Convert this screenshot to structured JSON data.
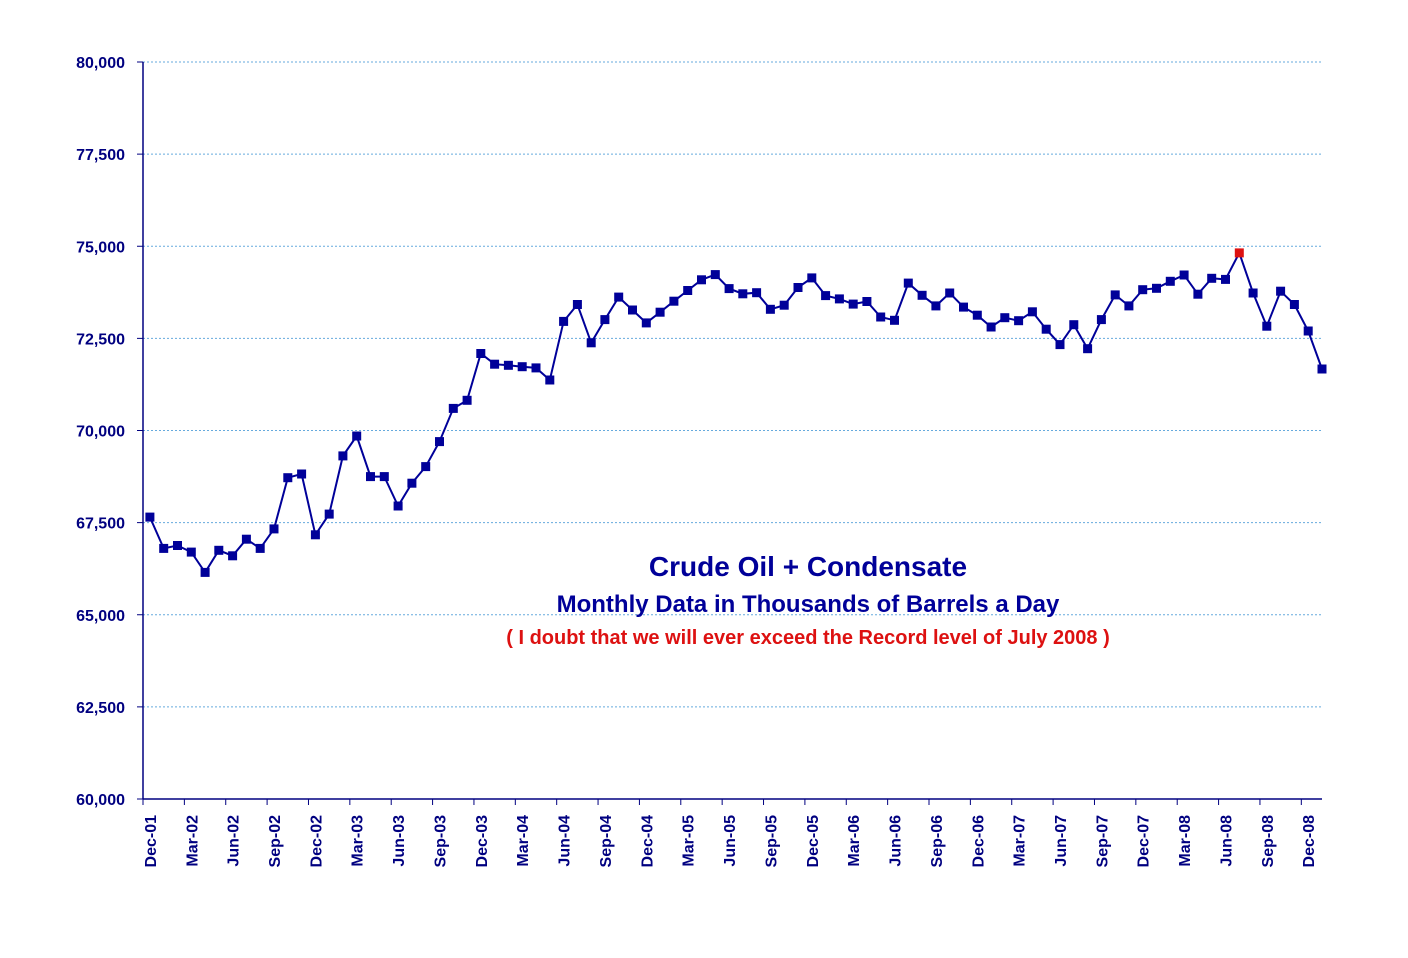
{
  "chart_data": {
    "type": "line",
    "title": "Crude Oil + Condensate",
    "subtitle": "Monthly Data in Thousands of Barrels a Day",
    "annotation": "( I doubt that we will ever exceed the Record level of July 2008 )",
    "xlabel": "",
    "ylabel": "",
    "ylim": [
      60000,
      80000
    ],
    "yticks": [
      "60,000",
      "62,500",
      "65,000",
      "67,500",
      "70,000",
      "72,500",
      "75,000",
      "77,500",
      "80,000"
    ],
    "xtick_labels": [
      "Dec-01",
      "Mar-02",
      "Jun-02",
      "Sep-02",
      "Dec-02",
      "Mar-03",
      "Jun-03",
      "Sep-03",
      "Dec-03",
      "Mar-04",
      "Jun-04",
      "Sep-04",
      "Dec-04",
      "Mar-05",
      "Jun-05",
      "Sep-05",
      "Dec-05",
      "Mar-06",
      "Jun-06",
      "Sep-06",
      "Dec-06",
      "Mar-07",
      "Jun-07",
      "Sep-07",
      "Dec-07",
      "Mar-08",
      "Jun-08",
      "Sep-08",
      "Dec-08"
    ],
    "grid": true,
    "legend": "none",
    "x_start": "Dec-01",
    "x_end": "Jan-09",
    "series": [
      {
        "color": "#000099",
        "values": [
          67650,
          66800,
          66880,
          66700,
          66150,
          66750,
          66600,
          67050,
          66800,
          67330,
          68720,
          68820,
          67170,
          67730,
          69310,
          69850,
          68750,
          68750,
          67950,
          68570,
          69020,
          69700,
          70600,
          70820,
          72090,
          71800,
          71770,
          71730,
          71700,
          71370,
          72960,
          73420,
          72380,
          73010,
          73620,
          73270,
          72920,
          73210,
          73510,
          73800,
          74090,
          74230,
          73850,
          73710,
          73740,
          73290,
          73400,
          73880,
          74140,
          73660,
          73570,
          73430,
          73500,
          73080,
          72990,
          74000,
          73670,
          73380,
          73730,
          73350,
          73130,
          72810,
          73060,
          72980,
          73220,
          72750,
          72330,
          72870,
          72220,
          73010,
          73680,
          73380,
          73820,
          73860,
          74050,
          74220,
          73700,
          74130,
          74100,
          74820,
          73730,
          72830,
          73780,
          73420,
          72700,
          71670
        ]
      }
    ],
    "highlight": {
      "label": "Jul-08",
      "value": 74820,
      "color": "#dd1111"
    }
  }
}
